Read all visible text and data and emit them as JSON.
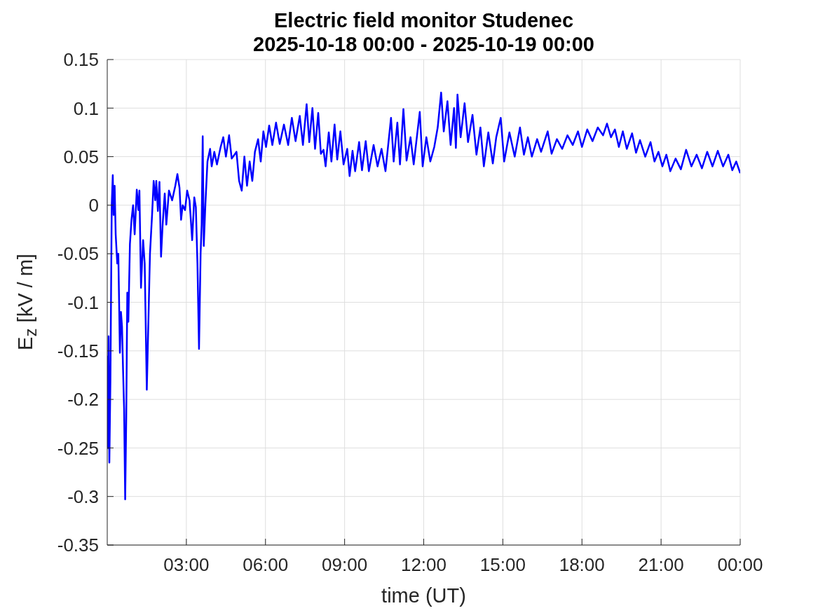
{
  "chart_data": {
    "type": "line",
    "title": "Electric field monitor Studenec",
    "subtitle": "2025-10-18 00:00 - 2025-10-19 00:00",
    "xlabel": "time (UT)",
    "ylabel": "E$_{z}$ [kV / m]",
    "x": [
      0,
      0.02,
      0.05,
      0.08,
      0.12,
      0.17,
      0.21,
      0.24,
      0.28,
      0.32,
      0.38,
      0.42,
      0.45,
      0.48,
      0.52,
      0.56,
      0.6,
      0.64,
      0.68,
      0.72,
      0.76,
      0.8,
      0.86,
      0.92,
      0.98,
      1.04,
      1.12,
      1.18,
      1.22,
      1.28,
      1.32,
      1.36,
      1.42,
      1.5,
      1.56,
      1.62,
      1.7,
      1.76,
      1.82,
      1.86,
      1.92,
      1.98,
      2.04,
      2.1,
      2.18,
      2.24,
      2.34,
      2.46,
      2.58,
      2.66,
      2.74,
      2.8,
      2.86,
      2.95,
      3.03,
      3.12,
      3.22,
      3.3,
      3.36,
      3.42,
      3.48,
      3.54,
      3.58,
      3.62,
      3.66,
      3.72,
      3.8,
      3.9,
      3.96,
      4.06,
      4.16,
      4.3,
      4.4,
      4.5,
      4.62,
      4.72,
      4.9,
      5,
      5.1,
      5.2,
      5.3,
      5.4,
      5.5,
      5.6,
      5.72,
      5.82,
      5.92,
      6.02,
      6.14,
      6.26,
      6.4,
      6.54,
      6.7,
      6.86,
      7,
      7.14,
      7.3,
      7.42,
      7.56,
      7.66,
      7.78,
      7.88,
      8,
      8.1,
      8.2,
      8.28,
      8.4,
      8.5,
      8.62,
      8.72,
      8.84,
      8.96,
      9.1,
      9.19,
      9.3,
      9.4,
      9.55,
      9.66,
      9.8,
      9.92,
      10.1,
      10.25,
      10.4,
      10.55,
      10.76,
      10.86,
      11,
      11.1,
      11.23,
      11.35,
      11.5,
      11.62,
      11.85,
      11.96,
      12.1,
      12.25,
      12.4,
      12.53,
      12.66,
      12.76,
      12.9,
      13.02,
      13.15,
      13.22,
      13.28,
      13.4,
      13.55,
      13.68,
      13.85,
      14,
      14.15,
      14.28,
      14.45,
      14.62,
      14.75,
      14.92,
      15.05,
      15.25,
      15.45,
      15.65,
      15.8,
      15.95,
      16.1,
      16.3,
      16.45,
      16.7,
      16.85,
      17.05,
      17.25,
      17.45,
      17.65,
      17.85,
      18,
      18.2,
      18.4,
      18.6,
      18.8,
      18.95,
      19.1,
      19.25,
      19.4,
      19.55,
      19.7,
      19.9,
      20.05,
      20.2,
      20.4,
      20.6,
      20.75,
      20.9,
      21.05,
      21.2,
      21.35,
      21.55,
      21.75,
      21.95,
      22.15,
      22.35,
      22.55,
      22.75,
      22.95,
      23.15,
      23.35,
      23.55,
      23.7,
      23.85,
      24
    ],
    "series": [
      {
        "color": "#0000ff",
        "values": [
          -0.155,
          -0.25,
          -0.135,
          -0.265,
          -0.18,
          0,
          0.031,
          -0.01,
          0.02,
          -0.03,
          -0.06,
          -0.05,
          -0.1,
          -0.152,
          -0.11,
          -0.125,
          -0.17,
          -0.21,
          -0.303,
          -0.22,
          -0.09,
          -0.12,
          -0.04,
          -0.015,
          0,
          -0.03,
          0.016,
          -0.005,
          0.015,
          -0.085,
          -0.06,
          -0.036,
          -0.06,
          -0.19,
          -0.12,
          -0.05,
          -0.01,
          0.025,
          0.005,
          0.025,
          -0.006,
          0.024,
          -0.053,
          -0.02,
          0.012,
          -0.02,
          0.015,
          0.005,
          0.02,
          0.032,
          0.018,
          -0.015,
          0,
          -0.005,
          0.015,
          0.005,
          -0.036,
          0.008,
          -0.002,
          -0.06,
          -0.148,
          -0.05,
          -0.02,
          0.071,
          -0.042,
          0,
          0.045,
          0.058,
          0.04,
          0.055,
          0.042,
          0.06,
          0.07,
          0.05,
          0.072,
          0.048,
          0.055,
          0.025,
          0.015,
          0.05,
          0.02,
          0.045,
          0.025,
          0.055,
          0.068,
          0.045,
          0.076,
          0.06,
          0.082,
          0.062,
          0.085,
          0.063,
          0.083,
          0.062,
          0.09,
          0.066,
          0.092,
          0.062,
          0.104,
          0.065,
          0.1,
          0.058,
          0.095,
          0.053,
          0.057,
          0.04,
          0.075,
          0.045,
          0.083,
          0.047,
          0.076,
          0.042,
          0.058,
          0.03,
          0.056,
          0.035,
          0.065,
          0.036,
          0.066,
          0.035,
          0.062,
          0.04,
          0.058,
          0.035,
          0.09,
          0.045,
          0.085,
          0.042,
          0.099,
          0.046,
          0.07,
          0.042,
          0.096,
          0.04,
          0.07,
          0.045,
          0.06,
          0.08,
          0.116,
          0.076,
          0.107,
          0.062,
          0.1,
          0.059,
          0.114,
          0.07,
          0.105,
          0.065,
          0.093,
          0.052,
          0.08,
          0.04,
          0.075,
          0.043,
          0.07,
          0.09,
          0.045,
          0.075,
          0.05,
          0.08,
          0.052,
          0.07,
          0.05,
          0.068,
          0.055,
          0.076,
          0.053,
          0.068,
          0.058,
          0.072,
          0.062,
          0.076,
          0.06,
          0.078,
          0.066,
          0.08,
          0.072,
          0.084,
          0.07,
          0.078,
          0.06,
          0.076,
          0.058,
          0.074,
          0.054,
          0.067,
          0.05,
          0.065,
          0.045,
          0.055,
          0.04,
          0.052,
          0.035,
          0.048,
          0.037,
          0.057,
          0.04,
          0.052,
          0.038,
          0.055,
          0.04,
          0.056,
          0.04,
          0.052,
          0.036,
          0.045,
          0.033
        ]
      }
    ],
    "xlim": [
      0,
      24
    ],
    "xticks": [
      {
        "value": 3,
        "label": "03:00"
      },
      {
        "value": 6,
        "label": "06:00"
      },
      {
        "value": 9,
        "label": "09:00"
      },
      {
        "value": 12,
        "label": "12:00"
      },
      {
        "value": 15,
        "label": "15:00"
      },
      {
        "value": 18,
        "label": "18:00"
      },
      {
        "value": 21,
        "label": "21:00"
      },
      {
        "value": 24,
        "label": "00:00"
      }
    ],
    "ylim": [
      -0.35,
      0.15
    ],
    "yticks": [
      -0.35,
      -0.3,
      -0.25,
      -0.2,
      -0.15,
      -0.1,
      -0.05,
      0,
      0.05,
      0.1,
      0.15
    ],
    "grid": true
  }
}
